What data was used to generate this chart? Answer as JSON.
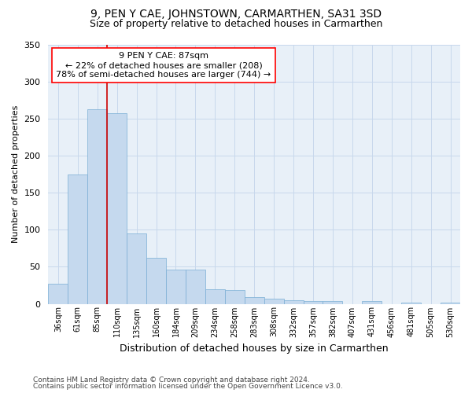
{
  "title": "9, PEN Y CAE, JOHNSTOWN, CARMARTHEN, SA31 3SD",
  "subtitle": "Size of property relative to detached houses in Carmarthen",
  "xlabel": "Distribution of detached houses by size in Carmarthen",
  "ylabel": "Number of detached properties",
  "bar_color": "#c5d9ee",
  "bar_edge_color": "#7aaed4",
  "grid_color": "#c8d8ec",
  "background_color": "#e8f0f8",
  "marker_line_color": "#cc0000",
  "marker_label": "9 PEN Y CAE: 87sqm",
  "annotation_line1": "← 22% of detached houses are smaller (208)",
  "annotation_line2": "78% of semi-detached houses are larger (744) →",
  "categories": [
    "36sqm",
    "61sqm",
    "85sqm",
    "110sqm",
    "135sqm",
    "160sqm",
    "184sqm",
    "209sqm",
    "234sqm",
    "258sqm",
    "283sqm",
    "308sqm",
    "332sqm",
    "357sqm",
    "382sqm",
    "407sqm",
    "431sqm",
    "456sqm",
    "481sqm",
    "505sqm",
    "530sqm"
  ],
  "values": [
    27,
    175,
    263,
    257,
    95,
    62,
    46,
    46,
    20,
    19,
    9,
    7,
    5,
    4,
    4,
    0,
    4,
    0,
    2,
    0,
    2
  ],
  "ylim": [
    0,
    350
  ],
  "yticks": [
    0,
    50,
    100,
    150,
    200,
    250,
    300,
    350
  ],
  "footnote1": "Contains HM Land Registry data © Crown copyright and database right 2024.",
  "footnote2": "Contains public sector information licensed under the Open Government Licence v3.0.",
  "marker_bar_index": 2
}
